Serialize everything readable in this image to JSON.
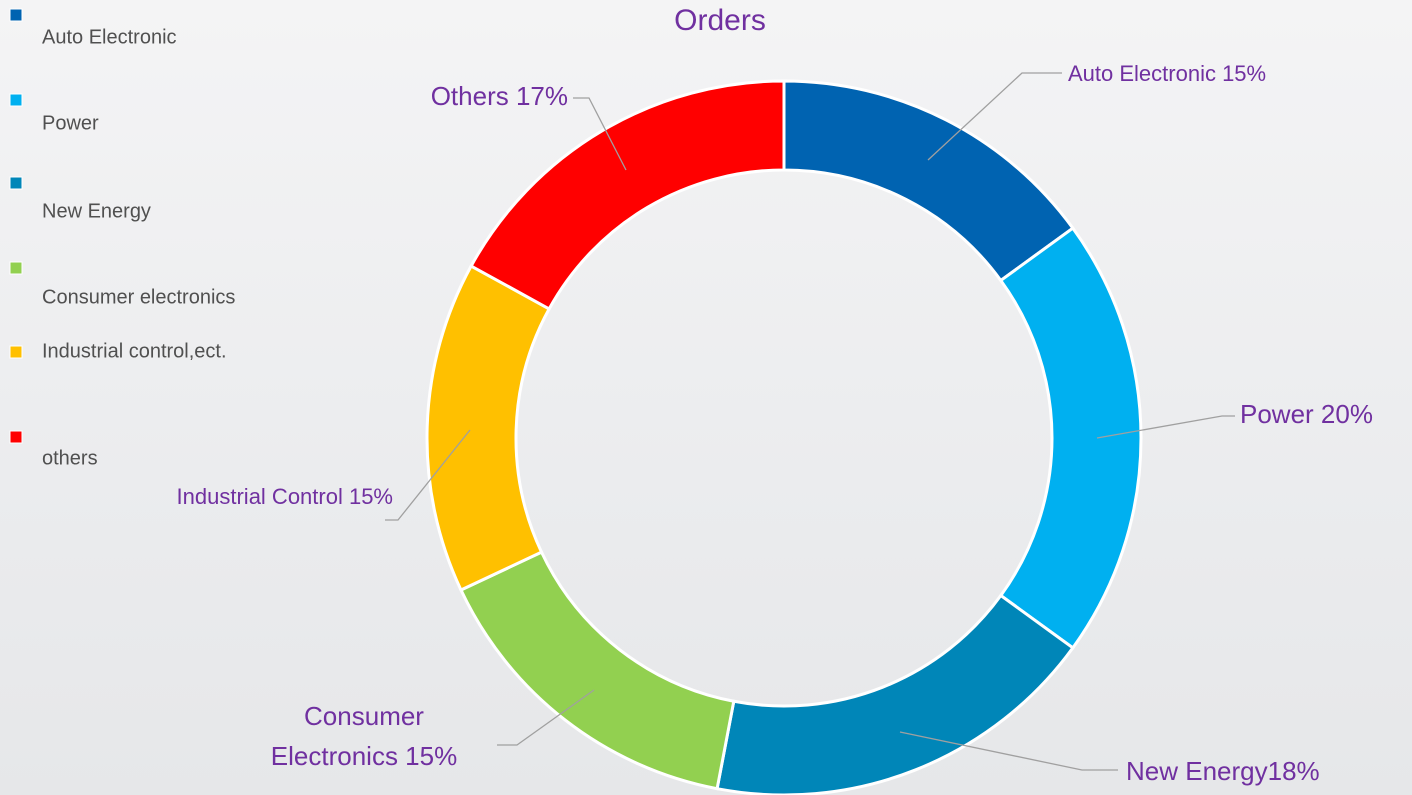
{
  "chart_data": {
    "type": "pie",
    "title": "Orders",
    "donut": true,
    "categories": [
      "Auto Electronic",
      "Power",
      "New Energy",
      "Consumer electronics",
      "Industrial control,ect.",
      "others"
    ],
    "values": [
      15,
      20,
      18,
      15,
      15,
      17
    ],
    "value_labels": [
      "Auto Electronic 15%",
      "Power 20%",
      "New Energy18%",
      "Consumer Electronics 15%",
      "Industrial Control 15%",
      "Others 17%"
    ],
    "colors": [
      "#0063b1",
      "#00b0f0",
      "#0086b8",
      "#92d050",
      "#ffc000",
      "#ff0000"
    ],
    "legend": "left"
  }
}
